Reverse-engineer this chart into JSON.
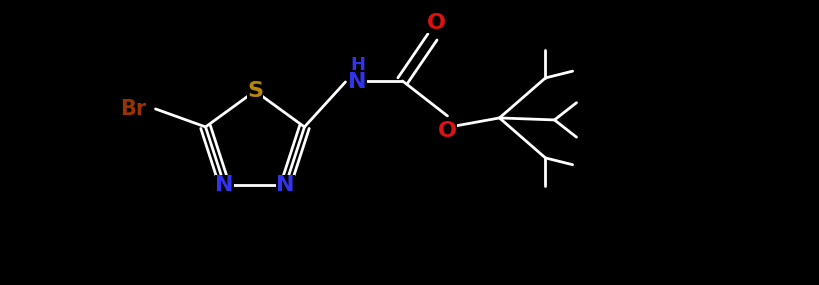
{
  "bg_color": "#000000",
  "bond_color": "#ffffff",
  "S_color": "#b8860b",
  "N_color": "#3333ee",
  "O_color": "#dd1111",
  "Br_color": "#993300",
  "figsize": [
    8.19,
    2.85
  ],
  "dpi": 100,
  "xlim": [
    0,
    8.19
  ],
  "ylim": [
    0,
    2.85
  ]
}
